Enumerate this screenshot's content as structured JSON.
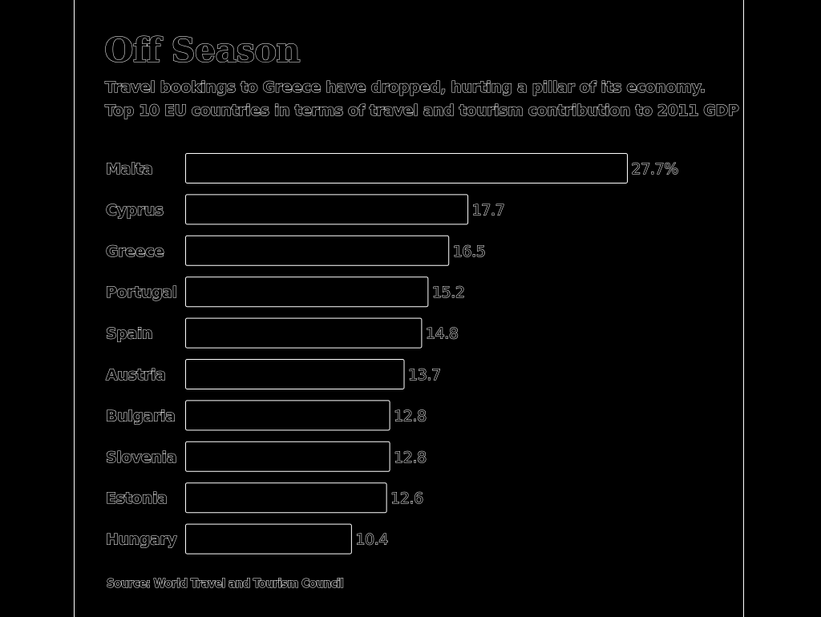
{
  "header": {
    "title": "Off Season",
    "subtitle_line1": "Travel bookings to Greece have dropped, hurting a pillar of its economy.",
    "subtitle_line2": "Top 10 EU countries in terms of travel and tourism contribution to 2011 GDP"
  },
  "footer": {
    "source": "Source: World Travel and Tourism Council"
  },
  "colors": {
    "background": "#000000",
    "outline": "#ffffff"
  },
  "chart_data": {
    "type": "bar",
    "orientation": "horizontal",
    "categories": [
      "Malta",
      "Cyprus",
      "Greece",
      "Portugal",
      "Spain",
      "Austria",
      "Bulgaria",
      "Slovenia",
      "Estonia",
      "Hungary"
    ],
    "values": [
      27.7,
      17.7,
      16.5,
      15.2,
      14.8,
      13.7,
      12.8,
      12.8,
      12.6,
      10.4
    ],
    "value_labels": [
      "27.7%",
      "17.7",
      "16.5",
      "15.2",
      "14.8",
      "13.7",
      "12.8",
      "12.8",
      "12.6",
      "10.4"
    ],
    "unit": "%",
    "grid": false,
    "legend": "none"
  }
}
